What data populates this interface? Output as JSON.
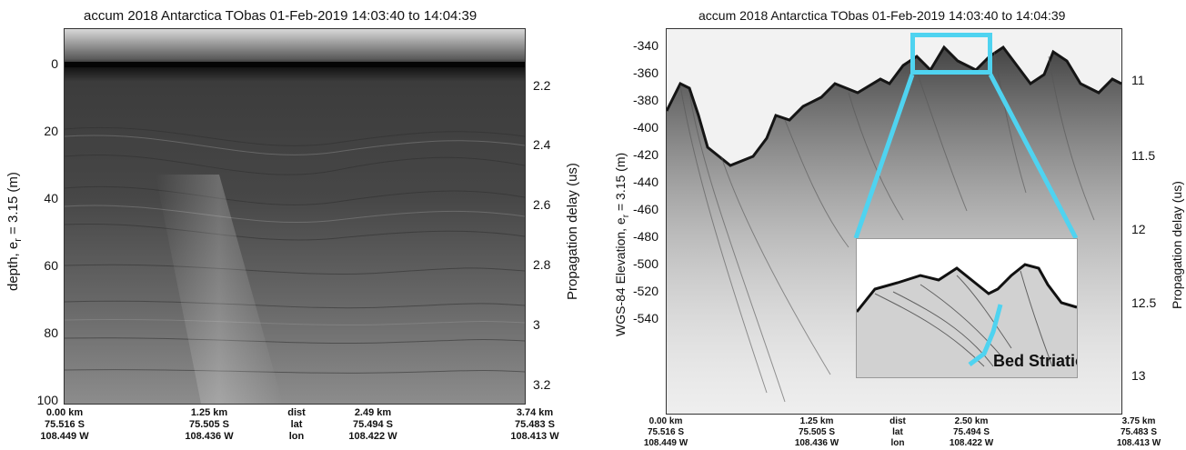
{
  "left": {
    "title": "accum 2018 Antarctica TObas 01-Feb-2019 14:03:40 to 14:04:39",
    "ylabel_left": "depth, e",
    "ylabel_left_sub": "r",
    "ylabel_left_tail": " = 3.15 (m)",
    "ylabel_right": "Propagation delay (us)",
    "y_ticks_left": [
      "0",
      "20",
      "40",
      "60",
      "80",
      "100"
    ],
    "y_ticks_right": [
      "2.2",
      "2.4",
      "2.6",
      "2.8",
      "3",
      "3.2"
    ],
    "x_cols": [
      {
        "a": "0.00 km",
        "b": "75.516 S",
        "c": "108.449 W"
      },
      {
        "a": "1.25 km",
        "b": "75.505 S",
        "c": "108.436 W"
      },
      {
        "a": "dist",
        "b": "lat",
        "c": "lon"
      },
      {
        "a": "2.49 km",
        "b": "75.494 S",
        "c": "108.422 W"
      },
      {
        "a": "3.74 km",
        "b": "75.483 S",
        "c": "108.413 W"
      }
    ]
  },
  "right": {
    "title": "accum 2018 Antarctica TObas 01-Feb-2019 14:03:40 to 14:04:39",
    "ylabel_left": "WGS-84 Elevation, e",
    "ylabel_left_sub": "r",
    "ylabel_left_tail": " = 3.15 (m)",
    "ylabel_right": "Propagation delay (us)",
    "y_ticks_left": [
      "-340",
      "-360",
      "-380",
      "-400",
      "-420",
      "-440",
      "-460",
      "-480",
      "-500",
      "-520",
      "-540"
    ],
    "y_ticks_right": [
      "11",
      "11.5",
      "12",
      "12.5",
      "13"
    ],
    "x_cols": [
      {
        "a": "0.00 km",
        "b": "75.516 S",
        "c": "108.449 W"
      },
      {
        "a": "1.25 km",
        "b": "75.505 S",
        "c": "108.436 W"
      },
      {
        "a": "dist",
        "b": "lat",
        "c": "lon"
      },
      {
        "a": "2.50 km",
        "b": "75.494 S",
        "c": "108.422 W"
      },
      {
        "a": "3.75 km",
        "b": "75.483 S",
        "c": "108.413 W"
      }
    ],
    "callout": "Bed Striations",
    "highlight_color": "#4fd3f0"
  }
}
